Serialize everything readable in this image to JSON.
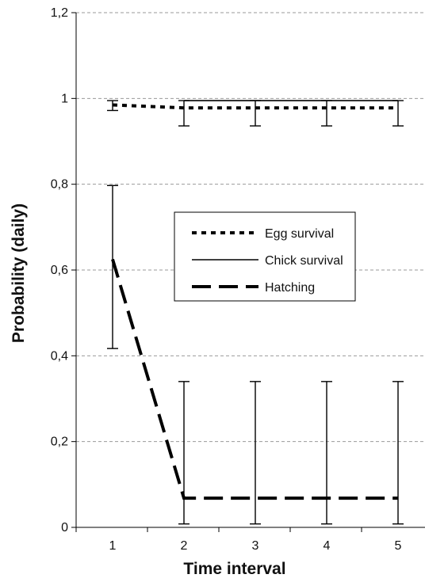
{
  "chart_data": {
    "type": "line",
    "xlabel": "Time interval",
    "ylabel": "Probability (daily)",
    "categories": [
      "1",
      "2",
      "3",
      "4",
      "5"
    ],
    "ylim": [
      0,
      1.2
    ],
    "yticks": [
      0,
      0.2,
      0.4,
      0.6,
      0.8,
      1,
      1.2
    ],
    "ytick_labels": [
      "0",
      "0,2",
      "0,4",
      "0,6",
      "0,8",
      "1",
      "1,2"
    ],
    "grid": "horizontal dashed",
    "legend_position": "center-right",
    "series": [
      {
        "name": "Egg survival",
        "style": "dotted",
        "color": "#000000",
        "values": [
          0.985,
          0.978,
          0.978,
          0.978,
          0.978
        ],
        "err_low": [
          0.972,
          0.936,
          0.936,
          0.936,
          0.936
        ],
        "err_high": [
          0.995,
          0.995,
          0.995,
          0.995,
          0.995
        ]
      },
      {
        "name": "Chick survival",
        "style": "solid",
        "color": "#000000",
        "values": [
          null,
          0.995,
          0.995,
          0.995,
          0.995
        ],
        "err_low": [
          null,
          null,
          null,
          null,
          null
        ],
        "err_high": [
          null,
          null,
          null,
          null,
          null
        ]
      },
      {
        "name": "Hatching",
        "style": "long-dash",
        "color": "#000000",
        "values": [
          0.625,
          0.068,
          0.068,
          0.068,
          0.068
        ],
        "err_low": [
          0.417,
          0.008,
          0.008,
          0.008,
          0.008
        ],
        "err_high": [
          0.797,
          0.34,
          0.34,
          0.34,
          0.34
        ]
      }
    ]
  }
}
